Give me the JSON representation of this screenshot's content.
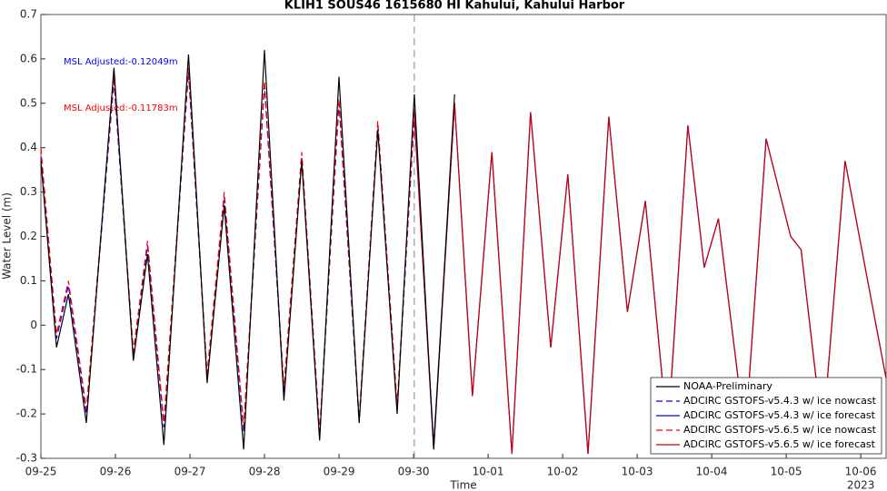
{
  "chart_data": {
    "type": "line",
    "title": "KLIH1 SOUS46 1615680 HI Kahului, Kahului Harbor",
    "xlabel": "Time",
    "ylabel": "Water Level (m)",
    "x_year_label": "2023",
    "x": [
      0,
      0.21,
      0.37,
      0.61,
      0.98,
      1.24,
      1.43,
      1.65,
      1.98,
      2.23,
      2.46,
      2.72,
      3.0,
      3.26,
      3.5,
      3.74,
      4.0,
      4.27,
      4.52,
      4.78,
      5.01,
      5.27,
      5.55,
      5.79,
      6.05,
      6.32,
      6.57,
      6.84,
      7.07,
      7.34,
      7.62,
      7.87,
      8.11,
      8.41,
      8.68,
      8.9,
      9.09,
      9.45,
      9.73,
      10.06,
      10.2,
      10.49,
      10.79,
      11.34
    ],
    "xlim": [
      0,
      11.34
    ],
    "xticks": [
      {
        "value": 0,
        "label": "09-25"
      },
      {
        "value": 1,
        "label": "09-26"
      },
      {
        "value": 2,
        "label": "09-27"
      },
      {
        "value": 3,
        "label": "09-28"
      },
      {
        "value": 4,
        "label": "09-29"
      },
      {
        "value": 5,
        "label": "09-30"
      },
      {
        "value": 6,
        "label": "10-01"
      },
      {
        "value": 7,
        "label": "10-02"
      },
      {
        "value": 8,
        "label": "10-03"
      },
      {
        "value": 9,
        "label": "10-04"
      },
      {
        "value": 10,
        "label": "10-05"
      },
      {
        "value": 11,
        "label": "10-06"
      }
    ],
    "ylim": [
      -0.3,
      0.7
    ],
    "yticks": [
      -0.3,
      -0.2,
      -0.1,
      0,
      0.1,
      0.2,
      0.3,
      0.4,
      0.5,
      0.6,
      0.7
    ],
    "vline_x": 5.01,
    "legend": "lower right",
    "annotations": [
      {
        "text": "MSL Adjusted:-0.12049m",
        "color": "#0000ff"
      },
      {
        "text": "MSL Adjusted:-0.11783m",
        "color": "#ff0000"
      }
    ],
    "series": [
      {
        "name": "NOAA-Preliminary",
        "color": "#000000",
        "dash": false,
        "values": [
          0.37,
          -0.05,
          0.07,
          -0.22,
          0.58,
          -0.08,
          0.16,
          -0.27,
          0.61,
          -0.13,
          0.27,
          -0.28,
          0.62,
          -0.17,
          0.37,
          -0.26,
          0.56,
          -0.22,
          0.44,
          -0.2,
          0.52,
          -0.28,
          0.52,
          null,
          null,
          null,
          null,
          null,
          null,
          null,
          null,
          null,
          null,
          null,
          null,
          null,
          null,
          null,
          null,
          null,
          null,
          null,
          null,
          null
        ]
      },
      {
        "name": "ADCIRC GSTOFS-v5.4.3 w/ ice nowcast",
        "color": "#0000ff",
        "dash": true,
        "values": [
          0.38,
          -0.03,
          0.09,
          -0.2,
          0.55,
          -0.07,
          0.18,
          -0.23,
          0.57,
          -0.12,
          0.29,
          -0.24,
          0.54,
          -0.15,
          0.38,
          -0.25,
          0.5,
          -0.22,
          0.45,
          -0.19,
          0.47,
          null,
          null,
          null,
          null,
          null,
          null,
          null,
          null,
          null,
          null,
          null,
          null,
          null,
          null,
          null,
          null,
          null,
          null,
          null,
          null,
          null,
          null,
          null
        ]
      },
      {
        "name": "ADCIRC GSTOFS-v5.4.3 w/ ice forecast",
        "color": "#0000ff",
        "dash": false,
        "values": [
          null,
          null,
          null,
          null,
          null,
          null,
          null,
          null,
          null,
          null,
          null,
          null,
          null,
          null,
          null,
          null,
          null,
          null,
          null,
          null,
          0.47,
          -0.27,
          0.5,
          -0.16,
          0.39,
          -0.29,
          0.48,
          -0.05,
          0.34,
          -0.29,
          0.47,
          0.03,
          0.28,
          -0.25,
          0.45,
          0.13,
          0.24,
          -0.25,
          0.42,
          0.2,
          0.17,
          -0.25,
          0.37,
          -0.12
        ]
      },
      {
        "name": "ADCIRC GSTOFS-v5.6.5 w/ ice nowcast",
        "color": "#ff0000",
        "dash": true,
        "values": [
          0.4,
          -0.02,
          0.1,
          -0.19,
          0.56,
          -0.06,
          0.19,
          -0.22,
          0.58,
          -0.11,
          0.3,
          -0.23,
          0.55,
          -0.14,
          0.39,
          -0.24,
          0.51,
          -0.21,
          0.46,
          -0.18,
          0.48,
          null,
          null,
          null,
          null,
          null,
          null,
          null,
          null,
          null,
          null,
          null,
          null,
          null,
          null,
          null,
          null,
          null,
          null,
          null,
          null,
          null,
          null,
          null
        ]
      },
      {
        "name": "ADCIRC GSTOFS-v5.6.5 w/ ice forecast",
        "color": "#cc0000",
        "dash": false,
        "values": [
          null,
          null,
          null,
          null,
          null,
          null,
          null,
          null,
          null,
          null,
          null,
          null,
          null,
          null,
          null,
          null,
          null,
          null,
          null,
          null,
          0.48,
          -0.28,
          0.5,
          -0.16,
          0.39,
          -0.29,
          0.48,
          -0.05,
          0.34,
          -0.29,
          0.47,
          0.03,
          0.28,
          -0.25,
          0.45,
          0.13,
          0.24,
          -0.25,
          0.42,
          0.2,
          0.17,
          -0.25,
          0.37,
          -0.12
        ]
      }
    ]
  }
}
